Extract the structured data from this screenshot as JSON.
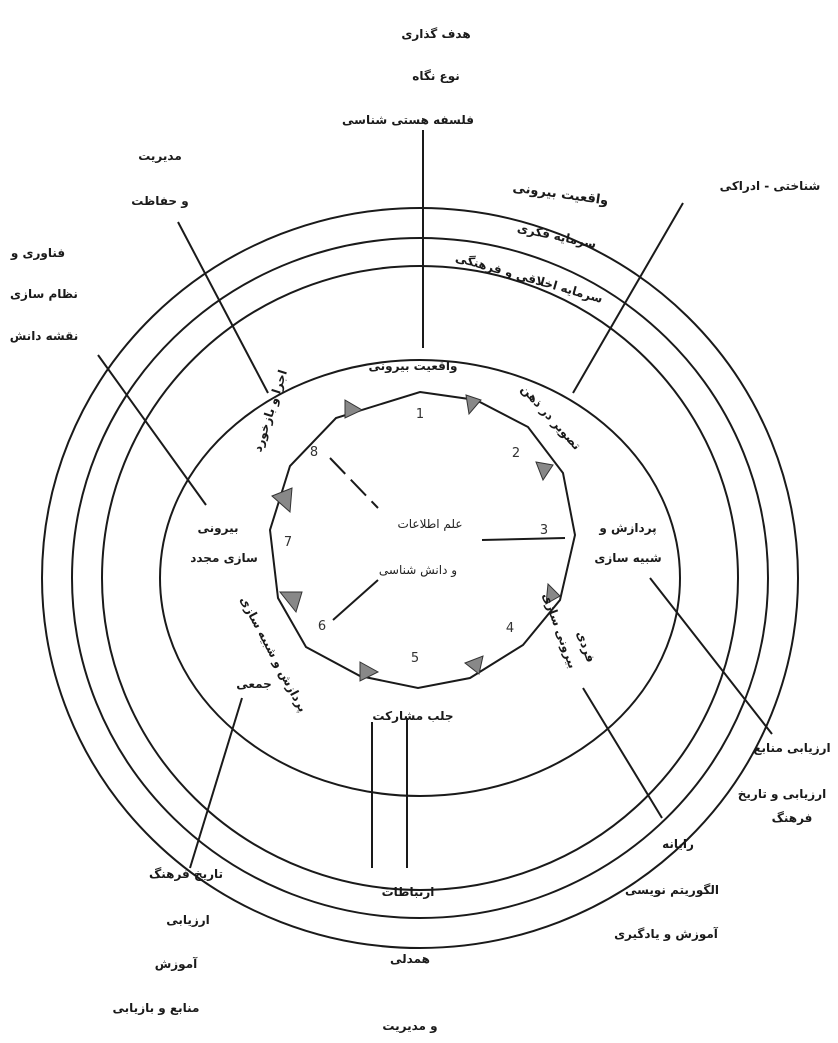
{
  "top_labels": [
    "هدف گذاری",
    "نوع نگاه",
    "فلسفه هستی شناسی"
  ],
  "top_right_label": "شناختی - ادراکی",
  "ring_labels": [
    "واقعیت بیرونی",
    "سرمایه فکری",
    "سرمایه اخلاقی و فرهنگی"
  ],
  "top_left_labels": [
    "مدیریت",
    "و حفاظت"
  ],
  "far_left_labels": [
    "فناوری و",
    "نظام سازی",
    "نقشه دانش"
  ],
  "right_labels": [
    "ارزیابی منابع",
    "ارزیابی و تاریخ",
    "فرهنگ"
  ],
  "bottom_right_labels": [
    "رایانه",
    "الگوریتم نویسی",
    "آموزش و یادگیری"
  ],
  "bottom_center_labels": [
    "ارتباطات",
    "همدلی",
    "و مدیریت"
  ],
  "bottom_left_labels": [
    "تاریخ فرهنگ",
    "ارزیابی",
    "آموزش",
    "منابع و بازیابی"
  ],
  "center": {
    "line1": "علم اطلاعات",
    "line2": "و دانش شناسی"
  },
  "numbers": [
    "1",
    "2",
    "3",
    "4",
    "5",
    "6",
    "7",
    "8"
  ],
  "stages": {
    "s1": "واقعیت بیرونی",
    "s2": "تصویر در ذهن",
    "s3a": "پردازش و",
    "s3b": "شبیه سازی",
    "s4a": "بیرونی سازی",
    "s4b": "فردی",
    "s5": "جلب مشارکت",
    "s6a": "پردازش و شبیه سازی",
    "s6b": "جمعی",
    "s7a": "بیرونی",
    "s7b": "سازی مجدد",
    "s8": "اجرا و بازخورد"
  }
}
